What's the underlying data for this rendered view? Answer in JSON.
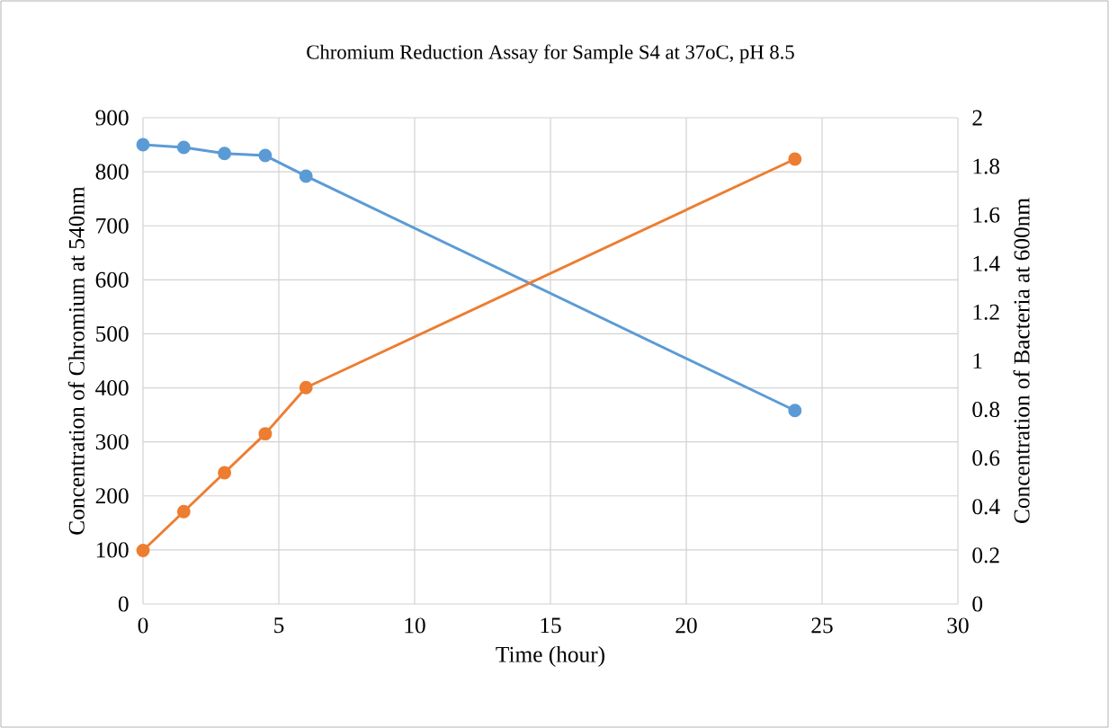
{
  "chart_data": {
    "type": "line",
    "title": "Chromium Reduction Assay for Sample S4 at 37oC, pH 8.5",
    "xlabel": "Time (hour)",
    "ylabel": "Concentration of Chromium at 540nm",
    "y2label": "Concentration of Bacteria at 600nm",
    "x": [
      0,
      1.5,
      3,
      4.5,
      6,
      24
    ],
    "series": [
      {
        "color": "#5b9bd5",
        "values": [
          850,
          845,
          834,
          830,
          792,
          358
        ]
      },
      {
        "color": "#ed7d31",
        "axis": "y2",
        "values": [
          0.22,
          0.38,
          0.54,
          0.7,
          0.89,
          1.83
        ]
      }
    ],
    "xlim": [
      0,
      30
    ],
    "xticks": [
      0,
      5,
      10,
      15,
      20,
      25,
      30
    ],
    "ylim": [
      0,
      900
    ],
    "yticks": [
      0,
      100,
      200,
      300,
      400,
      500,
      600,
      700,
      800,
      900
    ],
    "y2lim": [
      0,
      2
    ],
    "y2ticks": [
      0,
      0.2,
      0.4,
      0.6,
      0.8,
      1,
      1.2,
      1.4,
      1.6,
      1.8,
      2
    ],
    "grid": true,
    "marker": "circle",
    "line_style": "solid"
  }
}
